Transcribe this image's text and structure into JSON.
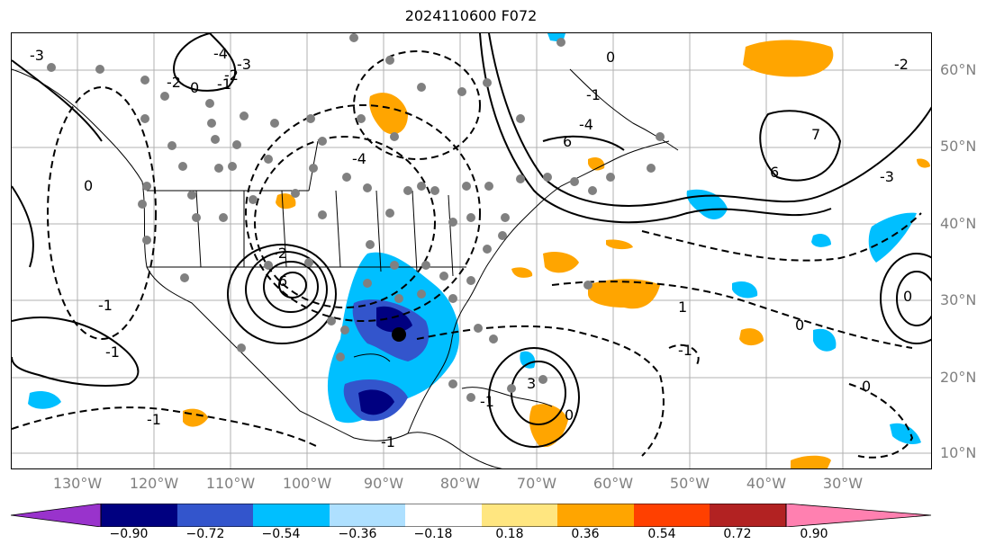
{
  "title": "2024110600 F072",
  "lat_labels": [
    "60°N",
    "50°N",
    "40°N",
    "30°N",
    "20°N",
    "10°N"
  ],
  "lon_labels": [
    "130°W",
    "120°W",
    "110°W",
    "100°W",
    "90°W",
    "80°W",
    "70°W",
    "60°W",
    "50°W",
    "40°W",
    "30°W"
  ],
  "colorbar": {
    "ticks": [
      "−0.90",
      "−0.72",
      "−0.54",
      "−0.36",
      "−0.18",
      "0.18",
      "0.36",
      "0.54",
      "0.72",
      "0.90"
    ],
    "colors": [
      "#9933cc",
      "#000080",
      "#3355cc",
      "#00bfff",
      "#aee0ff",
      "#ffffff",
      "#ffe680",
      "#ffa500",
      "#ff4000",
      "#b22222",
      "#ff80b0"
    ]
  },
  "contour_labels": [
    "-4",
    "-3",
    "-2",
    "-1",
    "0",
    "-2",
    "0",
    "-1",
    "-1",
    "-4",
    "-2",
    "6",
    "6",
    "-4",
    "6",
    "0",
    "-1",
    "1",
    "-1",
    "0",
    "-1",
    "-2",
    "0",
    "0",
    "-3",
    "-1",
    "-1",
    "3",
    "0",
    "7",
    "-3"
  ],
  "colors": {
    "negative_fill": "#00bfff",
    "strong_negative": "#3355cc",
    "very_strong_negative": "#000080",
    "positive_fill": "#ffa500",
    "station_dot": "#808080"
  }
}
